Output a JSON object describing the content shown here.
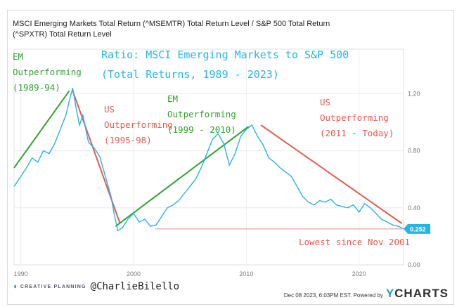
{
  "chart_data": {
    "type": "line",
    "title": "MSCI Emerging Markets Total Return (^MSEMTR) Total Return Level / S&P 500 Total Return (^SPXTR) Total Return Level",
    "annotation_title": [
      "Ratio: MSCI Emerging Markets to S&P 500",
      "(Total Returns, 1989 - 2023)"
    ],
    "xlim": [
      1989.4,
      2023.95
    ],
    "ylim": [
      0,
      1.4
    ],
    "x_ticks": [
      1990,
      2000,
      2010,
      2020
    ],
    "x_tick_labels": [
      "1990",
      "2000",
      "2010",
      "2020"
    ],
    "y_ticks": [
      0,
      0.4,
      0.8,
      1.2
    ],
    "y_tick_labels": [
      "0.00",
      "0.40",
      "0.80",
      "1.20"
    ],
    "grid": true,
    "series": [
      {
        "name": "EM / S&P 500 ratio",
        "color": "#27b3e6",
        "x": [
          1989.4,
          1990,
          1990.5,
          1991,
          1991.5,
          1992,
          1992.5,
          1993,
          1993.5,
          1994,
          1994.3,
          1994.6,
          1994.9,
          1995.2,
          1995.5,
          1996,
          1996.5,
          1997,
          1997.5,
          1998,
          1998.3,
          1998.6,
          1999,
          1999.5,
          2000,
          2000.5,
          2001,
          2001.5,
          2002,
          2002.5,
          2003,
          2003.5,
          2004,
          2004.5,
          2005,
          2005.5,
          2006,
          2006.5,
          2007,
          2007.5,
          2008,
          2008.5,
          2009,
          2009.5,
          2010,
          2010.5,
          2011,
          2011.5,
          2012,
          2012.5,
          2013,
          2013.5,
          2014,
          2014.5,
          2015,
          2015.5,
          2016,
          2016.5,
          2017,
          2017.5,
          2018,
          2018.5,
          2019,
          2019.5,
          2020,
          2020.5,
          2021,
          2021.5,
          2022,
          2022.5,
          2023,
          2023.5,
          2023.95
        ],
        "y": [
          0.55,
          0.62,
          0.68,
          0.75,
          0.72,
          0.8,
          0.78,
          0.85,
          0.95,
          1.05,
          1.15,
          1.24,
          1.1,
          0.98,
          1.05,
          0.86,
          0.82,
          0.76,
          0.62,
          0.48,
          0.35,
          0.24,
          0.26,
          0.32,
          0.36,
          0.3,
          0.32,
          0.27,
          0.28,
          0.34,
          0.4,
          0.42,
          0.45,
          0.5,
          0.55,
          0.6,
          0.68,
          0.78,
          0.88,
          0.92,
          0.85,
          0.7,
          0.78,
          0.9,
          0.95,
          0.98,
          0.9,
          0.84,
          0.75,
          0.72,
          0.68,
          0.65,
          0.62,
          0.55,
          0.48,
          0.44,
          0.42,
          0.45,
          0.44,
          0.46,
          0.42,
          0.41,
          0.4,
          0.42,
          0.37,
          0.43,
          0.4,
          0.36,
          0.32,
          0.3,
          0.28,
          0.27,
          0.252
        ]
      }
    ],
    "last_value_label": "0.252",
    "trend_lines": [
      {
        "color": "#2fa32f",
        "from": [
          1989.4,
          0.68
        ],
        "to": [
          1994.3,
          1.22
        ]
      },
      {
        "color": "#e35b50",
        "from": [
          1994.6,
          1.22
        ],
        "to": [
          1998.8,
          0.29
        ]
      },
      {
        "color": "#2fa32f",
        "from": [
          1998.4,
          0.27
        ],
        "to": [
          2010.2,
          0.97
        ]
      },
      {
        "color": "#e35b50",
        "from": [
          2011.3,
          0.98
        ],
        "to": [
          2023.8,
          0.29
        ]
      },
      {
        "color": "#f08a8a",
        "from": [
          2001.9,
          0.252
        ],
        "to": [
          2023.8,
          0.252
        ]
      }
    ],
    "annotations": {
      "em1": [
        "EM",
        "Outperforming",
        "(1989-94)"
      ],
      "us1": [
        "US",
        "Outperforming",
        "(1995-98)"
      ],
      "em2": [
        "EM",
        "Outperforming",
        "(1999 - 2010)"
      ],
      "us2": [
        "US",
        "Outperforming",
        "(2011 - Today)"
      ],
      "lowest": "Lowest since Nov 2001"
    }
  },
  "footer": {
    "brand": "CREATIVE PLANNING",
    "handle": "@CharlieBilello",
    "timestamp": "Dec 08 2023, 6:03PM EST.  Powered by",
    "ycharts_y": "Y",
    "ycharts_rest": "CHARTS"
  }
}
